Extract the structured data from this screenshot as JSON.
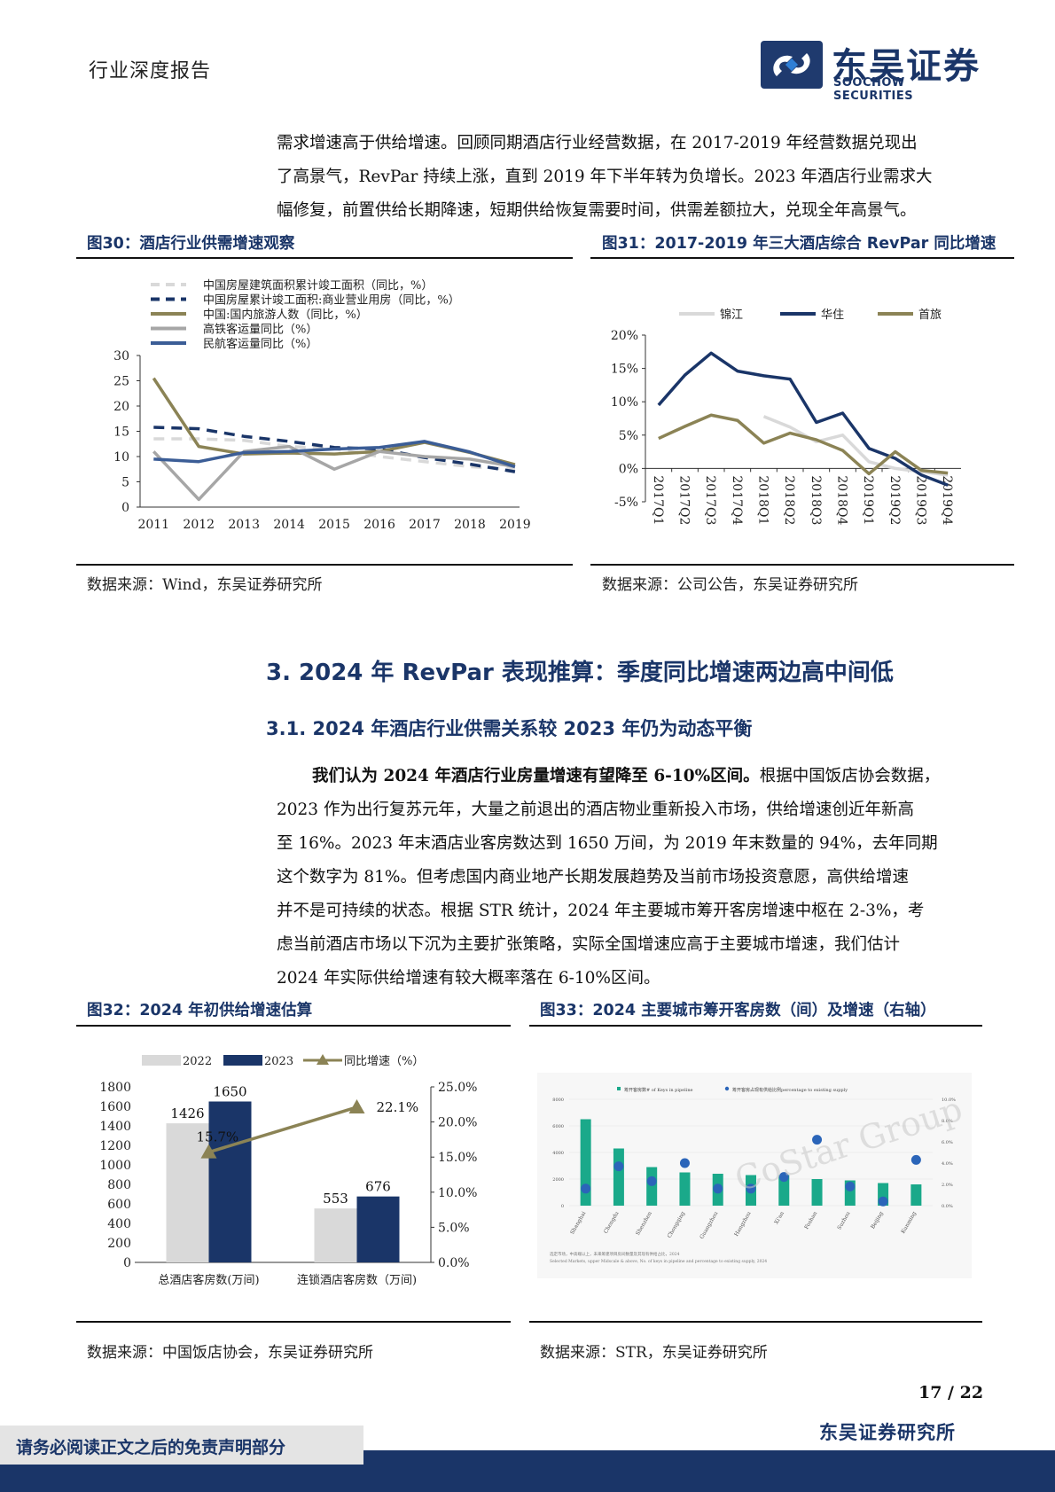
{
  "header": {
    "report_type": "行业深度报告",
    "logo_cn": "东吴证券",
    "logo_en": "SOOCHOW SECURITIES"
  },
  "intro_lines": [
    "需求增速高于供给增速。回顾同期酒店行业经营数据，在 2017-2019 年经营数据兑现出",
    "了高景气，RevPar 持续上涨，直到 2019 年下半年转为负增长。2023 年酒店行业需求大",
    "幅修复，前置供给长期降速，短期供给恢复需要时间，供需差额拉大，兑现全年高景气。"
  ],
  "fig30": {
    "title": "图30：酒店行业供需增速观察",
    "source": "数据来源：Wind，东吴证券研究所"
  },
  "fig31": {
    "title": "图31：2017-2019 年三大酒店综合 RevPar 同比增速",
    "source": "数据来源：公司公告，东吴证券研究所"
  },
  "section": {
    "h2": "3.  2024 年 RevPar 表现推算：季度同比增速两边高中间低",
    "h3": "3.1.  2024 年酒店行业供需关系较 2023 年仍为动态平衡",
    "lead_bold": "我们认为 2024 年酒店行业房量增速有望降至 6-10%区间。",
    "lead_rest": "根据中国饭店协会数据，",
    "body_lines": [
      "2023 作为出行复苏元年，大量之前退出的酒店物业重新投入市场，供给增速创近年新高",
      "至 16%。2023 年末酒店业客房数达到 1650 万间，为 2019 年末数量的 94%，去年同期",
      "这个数字为 81%。但考虑国内商业地产长期发展趋势及当前市场投资意愿，高供给增速",
      "并不是可持续的状态。根据 STR 统计，2024 年主要城市筹开客房增速中枢在 2-3%，考",
      "虑当前酒店市场以下沉为主要扩张策略，实际全国增速应高于主要城市增速，我们估计",
      "2024 年实际供给增速有较大概率落在 6-10%区间。"
    ]
  },
  "fig32": {
    "title": "图32：2024 年初供给增速估算",
    "source": "数据来源：中国饭店协会，东吴证券研究所"
  },
  "fig33": {
    "title": "图33：2024 主要城市筹开客房数（间）及增速（右轴）",
    "source": "数据来源：STR，东吴证券研究所",
    "legend_a": "筹开客房数# of Keys in pipeline",
    "legend_b": "筹开客房占现有供给比例percentage to existing supply",
    "watermark": "CoStar Group",
    "footnote1": "选定市场，中高端以上，未来筹建项目房间数量及其现有供给占比，2024",
    "footnote2": "Selected Markets, upper Midscale & above, No. of keys in pipeline and percentage to existing supply, 2024"
  },
  "footer": {
    "page": "17  /  22",
    "disclaimer": "请务必阅读正文之后的免责声明部分",
    "company": "东吴证券研究所"
  },
  "chart_data": [
    {
      "id": "fig30",
      "type": "line",
      "x": [
        "2011",
        "2012",
        "2013",
        "2014",
        "2015",
        "2016",
        "2017",
        "2018",
        "2019"
      ],
      "ylim": [
        0,
        30
      ],
      "yticks": [
        "0",
        "5",
        "10",
        "15",
        "20",
        "25",
        "30"
      ],
      "series": [
        {
          "name": "中国房屋建筑面积累计竣工面积（同比，%）",
          "color": "#d9d9d9",
          "dash": true,
          "values": [
            13.5,
            13.5,
            13.2,
            12.0,
            11.5,
            10.0,
            9.0,
            8.0,
            7.5
          ]
        },
        {
          "name": "中国房屋累计竣工面积:商业营业用房（同比，%）",
          "color": "#1a3568",
          "dash": true,
          "values": [
            15.8,
            15.5,
            14.0,
            13.0,
            11.8,
            11.5,
            9.8,
            8.5,
            7.0
          ]
        },
        {
          "name": "中国:国内旅游人数（同比，%）",
          "color": "#8b8355",
          "dash": false,
          "values": [
            25.5,
            12.0,
            10.5,
            10.7,
            10.5,
            11.0,
            12.8,
            10.8,
            8.4
          ]
        },
        {
          "name": "高铁客运量同比（%）",
          "color": "#a6a6a6",
          "dash": false,
          "values": [
            11.0,
            1.5,
            11.0,
            12.0,
            7.5,
            11.0,
            10.0,
            9.5,
            8.0
          ]
        },
        {
          "name": "民航客运量同比（%）",
          "color": "#3b5d96",
          "dash": false,
          "values": [
            9.5,
            9.0,
            10.8,
            11.0,
            11.5,
            11.8,
            13.0,
            10.9,
            8.0
          ]
        }
      ]
    },
    {
      "id": "fig31",
      "type": "line",
      "x": [
        "2017Q1",
        "2017Q2",
        "2017Q3",
        "2017Q4",
        "2018Q1",
        "2018Q2",
        "2018Q3",
        "2018Q4",
        "2019Q1",
        "2019Q2",
        "2019Q3",
        "2019Q4"
      ],
      "ylim": [
        -5,
        20
      ],
      "yticks": [
        "-5%",
        "0%",
        "5%",
        "10%",
        "15%",
        "20%"
      ],
      "series": [
        {
          "name": "锦江",
          "color": "#d9d9d9",
          "values": [
            null,
            null,
            null,
            null,
            7.8,
            6.2,
            4.0,
            5.0,
            1.0,
            0.0,
            -0.5,
            -1.0
          ]
        },
        {
          "name": "华住",
          "color": "#1a3568",
          "values": [
            9.5,
            14.0,
            17.3,
            14.6,
            13.9,
            13.4,
            6.9,
            8.3,
            3.0,
            1.5,
            -1.0,
            -2.5
          ]
        },
        {
          "name": "首旅",
          "color": "#8b8355",
          "values": [
            4.5,
            6.3,
            8.0,
            7.2,
            3.8,
            5.3,
            4.3,
            2.7,
            -0.8,
            2.5,
            -0.3,
            -0.7
          ]
        }
      ]
    },
    {
      "id": "fig32",
      "type": "bar",
      "categories": [
        "总酒店客房数(万间)",
        "连锁酒店客房数（万间)"
      ],
      "ylim": [
        0,
        1800
      ],
      "yticks": [
        "0",
        "200",
        "400",
        "600",
        "800",
        "1000",
        "1200",
        "1400",
        "1600",
        "1800"
      ],
      "y2lim": [
        0,
        25
      ],
      "y2ticks": [
        "0.0%",
        "5.0%",
        "10.0%",
        "15.0%",
        "20.0%",
        "25.0%"
      ],
      "series": [
        {
          "name": "2022",
          "color": "#d9d9d9",
          "values": [
            1426,
            553
          ],
          "labels": [
            "1426",
            "553"
          ]
        },
        {
          "name": "2023",
          "color": "#1a3568",
          "values": [
            1650,
            676
          ],
          "labels": [
            "1650",
            "676"
          ]
        },
        {
          "name": "同比增速（%）",
          "type": "line",
          "axis": "right",
          "color": "#8b8355",
          "values": [
            15.7,
            22.1
          ],
          "labels": [
            "15.7%",
            "22.1%"
          ]
        }
      ]
    },
    {
      "id": "fig33",
      "type": "bar",
      "categories": [
        "Shanghai",
        "Chengdu",
        "Shenzhen",
        "Chongqing",
        "Guangzhou",
        "Hangzhou",
        "Xi'an",
        "Foshan",
        "Suzhou",
        "Beijing",
        "Kunming"
      ],
      "ylim": [
        0,
        8000
      ],
      "yticks": [
        "0",
        "2000",
        "4000",
        "6000",
        "8000"
      ],
      "y2lim": [
        0,
        10
      ],
      "y2ticks": [
        "0.0%",
        "2.0%",
        "4.0%",
        "6.0%",
        "8.0%",
        "10.0%"
      ],
      "series": [
        {
          "name": "筹开客房数",
          "color": "#1aa98a",
          "values": [
            6500,
            4300,
            2900,
            2500,
            2400,
            2300,
            2300,
            2000,
            1900,
            1700,
            1600
          ]
        },
        {
          "name": "占现有供给比例",
          "type": "scatter",
          "axis": "right",
          "color": "#2b65b9",
          "values": [
            1.6,
            3.7,
            2.3,
            4.0,
            1.6,
            1.6,
            2.7,
            6.2,
            1.8,
            0.4,
            4.3
          ]
        }
      ]
    }
  ]
}
